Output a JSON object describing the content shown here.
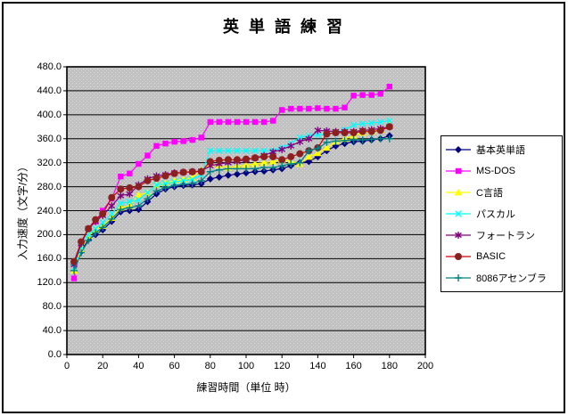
{
  "window": {
    "bg": "#ffffff",
    "border_color": "#000000"
  },
  "chart_data": {
    "type": "line",
    "title": "英 単 語 練 習",
    "xlabel": "練習時間（単位 時）",
    "ylabel": "入力速度（文字/分）",
    "xlim": [
      0,
      200
    ],
    "xtick_step": 20,
    "ylim": [
      0,
      480
    ],
    "ytick_step": 40,
    "ytick_decimals": 1,
    "grid": "horizontal-only",
    "legend_position": "right",
    "plot_bg": "#c0c0c0",
    "axis_color": "#000000",
    "gridline_color": "#000000",
    "x": [
      4,
      8,
      12,
      16,
      20,
      25,
      30,
      35,
      40,
      45,
      50,
      55,
      60,
      65,
      70,
      75,
      80,
      85,
      90,
      95,
      100,
      105,
      110,
      115,
      120,
      125,
      130,
      135,
      140,
      145,
      150,
      155,
      160,
      165,
      170,
      175,
      180
    ],
    "series": [
      {
        "name": "基本英単語",
        "color": "#000080",
        "marker": "diamond",
        "values": [
          150,
          172,
          192,
          200,
          208,
          222,
          238,
          240,
          242,
          255,
          268,
          276,
          280,
          282,
          283,
          285,
          293,
          296,
          299,
          301,
          303,
          305,
          306,
          308,
          310,
          315,
          320,
          322,
          330,
          340,
          348,
          352,
          355,
          356,
          358,
          360,
          365
        ]
      },
      {
        "name": "MS-DOS",
        "color": "#ff00ff",
        "marker": "square",
        "values": [
          127,
          185,
          210,
          222,
          240,
          260,
          297,
          302,
          318,
          332,
          348,
          352,
          355,
          356,
          358,
          362,
          388,
          388,
          388,
          388,
          388,
          388,
          388,
          390,
          408,
          410,
          410,
          410,
          411,
          410,
          410,
          412,
          432,
          433,
          433,
          435,
          447
        ]
      },
      {
        "name": "C言語",
        "color": "#ffff00",
        "marker": "triangle",
        "values": [
          140,
          175,
          198,
          208,
          215,
          228,
          245,
          248,
          266,
          270,
          283,
          286,
          290,
          292,
          295,
          308,
          318,
          316,
          312,
          314,
          316,
          318,
          320,
          322,
          325,
          322,
          318,
          330,
          336,
          345,
          355,
          360,
          365,
          370,
          372,
          375,
          383
        ]
      },
      {
        "name": "パスカル",
        "color": "#00ffff",
        "marker": "x",
        "values": [
          145,
          180,
          200,
          210,
          220,
          235,
          252,
          255,
          258,
          270,
          283,
          285,
          288,
          290,
          292,
          300,
          340,
          340,
          340,
          340,
          340,
          340,
          340,
          340,
          345,
          352,
          362,
          365,
          366,
          368,
          370,
          375,
          383,
          385,
          386,
          388,
          390
        ]
      },
      {
        "name": "フォートラン",
        "color": "#800080",
        "marker": "asterisk",
        "values": [
          150,
          185,
          210,
          222,
          232,
          248,
          265,
          268,
          283,
          293,
          298,
          300,
          303,
          304,
          305,
          306,
          315,
          318,
          320,
          322,
          325,
          328,
          332,
          338,
          342,
          348,
          355,
          360,
          374,
          373,
          372,
          372,
          372,
          374,
          375,
          377,
          380
        ]
      },
      {
        "name": "BASIC",
        "color": "#cc0000",
        "marker": "circle",
        "marker_color": "#8b2020",
        "values": [
          155,
          188,
          210,
          225,
          235,
          262,
          276,
          278,
          280,
          290,
          294,
          298,
          302,
          304,
          305,
          305,
          322,
          324,
          325,
          325,
          326,
          328,
          330,
          330,
          325,
          330,
          335,
          340,
          345,
          368,
          370,
          370,
          370,
          372,
          372,
          374,
          380
        ]
      },
      {
        "name": "8086アセンブラ",
        "color": "#008080",
        "marker": "plus",
        "values": [
          140,
          170,
          190,
          203,
          212,
          226,
          242,
          245,
          248,
          260,
          273,
          278,
          282,
          284,
          285,
          290,
          305,
          308,
          310,
          310,
          310,
          310,
          312,
          312,
          315,
          318,
          320,
          340,
          344,
          354,
          356,
          357,
          358,
          358,
          359,
          360,
          360
        ]
      }
    ]
  }
}
